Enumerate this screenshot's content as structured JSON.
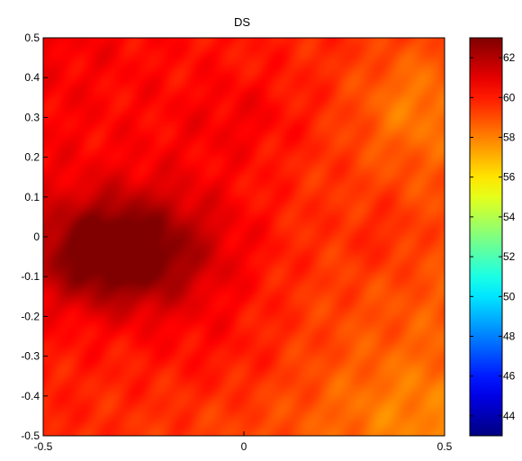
{
  "chart_data": {
    "type": "heatmap",
    "title": "DS",
    "xlabel": "",
    "ylabel": "",
    "xlim": [
      -0.5,
      0.5
    ],
    "ylim": [
      -0.5,
      0.5
    ],
    "x_ticks": [
      "-0.5",
      "0",
      "0.5"
    ],
    "y_ticks": [
      "0.5",
      "0.4",
      "0.3",
      "0.2",
      "0.1",
      "0",
      "-0.1",
      "-0.2",
      "-0.3",
      "-0.4",
      "-0.5"
    ],
    "colormap": "jet",
    "clim": [
      43,
      63
    ],
    "colorbar": {
      "position": "right",
      "ticks": [
        "62",
        "60",
        "58",
        "56",
        "54",
        "52",
        "50",
        "48",
        "46",
        "44"
      ]
    },
    "grid": false,
    "field": {
      "base_value": 59.6,
      "x_trend": -1.4,
      "y_trend": 0.9,
      "peaks": [
        {
          "x": -0.33,
          "y": -0.04,
          "sx": 0.13,
          "sy": 0.09,
          "amp": 3.4
        },
        {
          "x": -0.15,
          "y": -0.03,
          "sx": 0.18,
          "sy": 0.15,
          "amp": 1.3
        },
        {
          "x": 0.0,
          "y": 0.3,
          "sx": 0.12,
          "sy": 0.08,
          "amp": 0.7
        },
        {
          "x": 0.35,
          "y": 0.0,
          "sx": 0.07,
          "sy": 0.07,
          "amp": 0.6
        },
        {
          "x": -0.05,
          "y": -0.3,
          "sx": 0.14,
          "sy": 0.09,
          "amp": 0.5
        },
        {
          "x": 0.42,
          "y": 0.33,
          "sx": 0.1,
          "sy": 0.1,
          "amp": -1.2
        },
        {
          "x": 0.4,
          "y": -0.44,
          "sx": 0.15,
          "sy": 0.1,
          "amp": -0.7
        }
      ]
    }
  }
}
